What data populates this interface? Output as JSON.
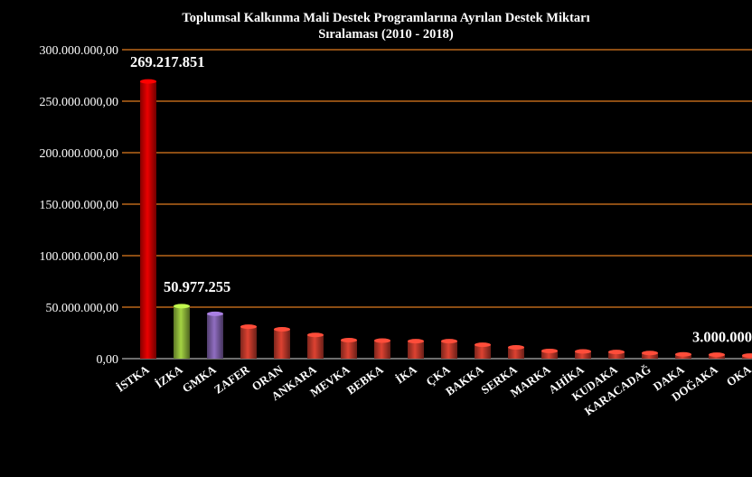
{
  "chart_data": {
    "type": "bar",
    "title": "Toplumsal Kalkınma Mali Destek Programlarına Ayrılan Destek  Miktarı Sıralaması (2010 - 2018)",
    "title_lines": [
      "Toplumsal Kalkınma Mali Destek Programlarına Ayrılan Destek  Miktarı",
      "Sıralaması (2010 - 2018)"
    ],
    "xlabel": "",
    "ylabel": "",
    "categories": [
      "İSTKA",
      "İZKA",
      "GMKA",
      "ZAFER",
      "ORAN",
      "ANKARA",
      "MEVKA",
      "BEBKA",
      "İKA",
      "ÇKA",
      "BAKKA",
      "SERKA",
      "MARKA",
      "AHİKA",
      "KUDAKA",
      "KARACADAĞ",
      "DAKA",
      "DOĞAKA",
      "OKA"
    ],
    "values": [
      269217851,
      50977255,
      43500000,
      31000000,
      28500000,
      23000000,
      18000000,
      17500000,
      17000000,
      17000000,
      13500000,
      11000000,
      7500000,
      7000000,
      6500000,
      5500000,
      4200000,
      3800000,
      3000000
    ],
    "bar_colors": [
      "#cc0000",
      "#8fb83a",
      "#7d5fa8",
      "#c0392b",
      "#c0392b",
      "#c0392b",
      "#c0392b",
      "#c0392b",
      "#c0392b",
      "#c0392b",
      "#c0392b",
      "#c0392b",
      "#c0392b",
      "#c0392b",
      "#c0392b",
      "#c0392b",
      "#c0392b",
      "#c0392b",
      "#c0392b"
    ],
    "yticks": [
      "0,00",
      "50.000.000,00",
      "100.000.000,00",
      "150.000.000,00",
      "200.000.000,00",
      "250.000.000,00",
      "300.000.000,00"
    ],
    "ylim": [
      0,
      300000000
    ],
    "grid": true,
    "grid_color": "#e07b1f",
    "data_labels": [
      {
        "index": 0,
        "text": "269.217.851"
      },
      {
        "index": 1,
        "text": "50.977.255"
      },
      {
        "index": 18,
        "text": "3.000.000"
      }
    ]
  }
}
